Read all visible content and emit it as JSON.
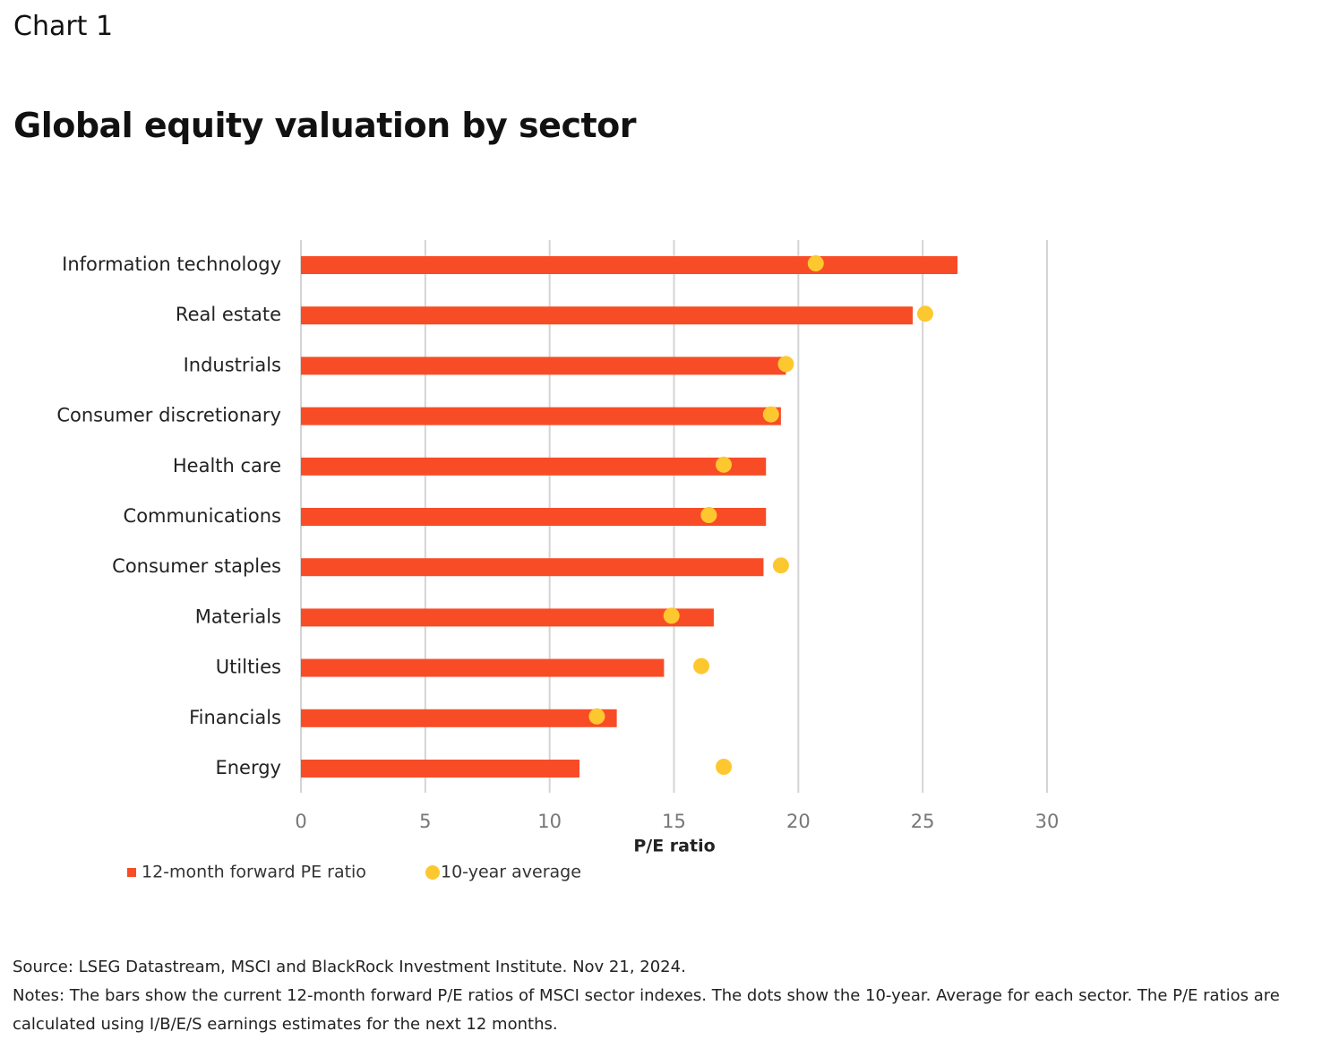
{
  "label": "Chart 1",
  "chart_data": {
    "type": "bar",
    "orientation": "horizontal",
    "title": "Global equity valuation by sector",
    "xlabel": "P/E ratio",
    "categories": [
      "Information technology",
      "Real estate",
      "Industrials",
      "Consumer discretionary",
      "Health care",
      "Communications",
      "Consumer staples",
      "Materials",
      "Utilties",
      "Financials",
      "Energy"
    ],
    "series": [
      {
        "name": "12-month forward PE ratio",
        "color": "#f84c27",
        "mark": "bar",
        "values": [
          26.4,
          24.6,
          19.5,
          19.3,
          18.7,
          18.7,
          18.6,
          16.6,
          14.6,
          12.7,
          11.2
        ]
      },
      {
        "name": "10-year average",
        "color": "#fdc82f",
        "mark": "dot",
        "values": [
          20.7,
          25.1,
          19.5,
          18.9,
          17.0,
          16.4,
          19.3,
          14.9,
          16.1,
          11.9,
          17.0
        ]
      }
    ],
    "xlim": [
      0,
      30
    ],
    "xticks": [
      0,
      5,
      10,
      15,
      20,
      25,
      30
    ],
    "grid": true
  },
  "source": "Source: LSEG Datastream, MSCI and BlackRock Investment Institute. Nov 21, 2024.",
  "notes": "Notes: The bars show the current 12-month forward P/E ratios of MSCI sector indexes. The dots show the 10-year. Average for each sector. The P/E ratios are calculated using I/B/E/S earnings estimates for the next 12 months."
}
